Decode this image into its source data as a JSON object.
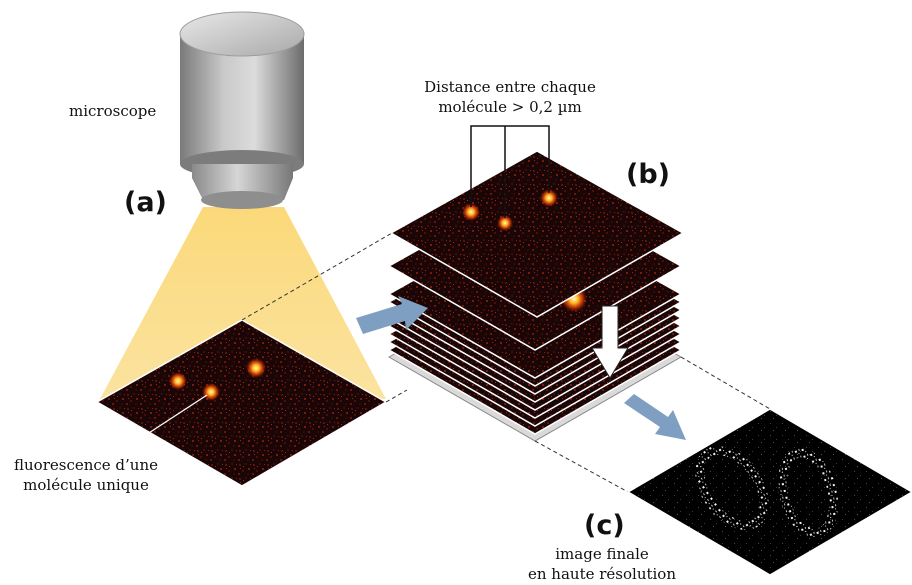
{
  "labels": {
    "microscope": "microscope",
    "panel_a": "(a)",
    "panel_b": "(b)",
    "panel_c": "(c)",
    "distance_line1": "Distance entre chaque",
    "distance_line2": "molécule > 0,2 µm",
    "fluorescence_line1": "fluorescence d’une",
    "fluorescence_line2": "molécule unique",
    "final_line1": "image finale",
    "final_line2": "en haute résolution"
  },
  "colors": {
    "light_cone": "#fbe3a0",
    "frame_background": "#1a0606",
    "emitter_core": "#fff6a8",
    "emitter_glow": "#ff5a10",
    "process_arrow": "#7f9fc2",
    "down_arrow": "#ffffff",
    "final_image_background": "#000000",
    "final_image_signal": "#e8e8e8"
  },
  "icons": {
    "microscope": "microscope-objective-icon",
    "transfer_arrow": "arrow-right-icon",
    "accumulate_arrow": "arrow-down-icon",
    "output_arrow": "arrow-down-right-icon"
  }
}
